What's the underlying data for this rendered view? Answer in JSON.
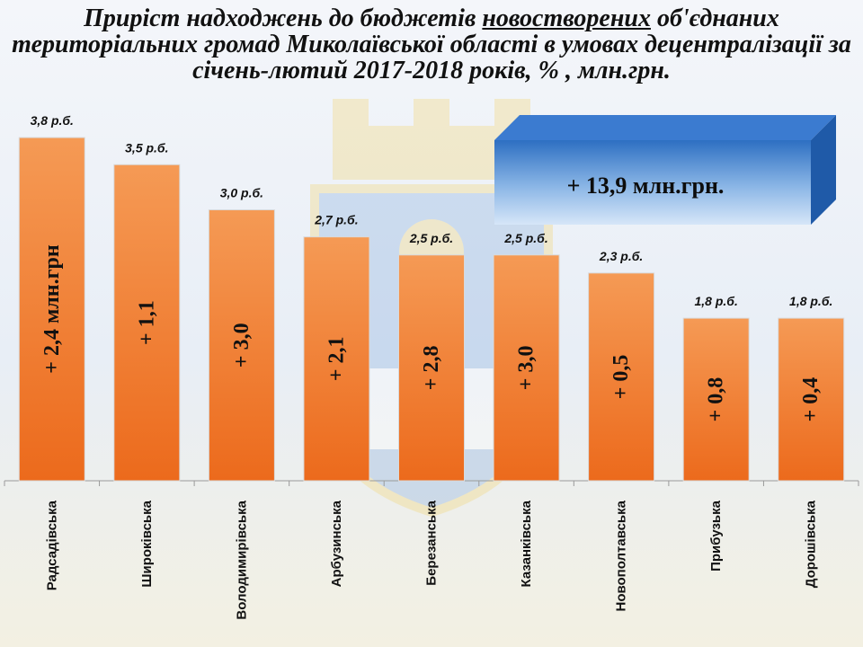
{
  "header": {
    "title_part1": "Приріст надходжень до бюджетів ",
    "title_underlined": "новостворених",
    "title_part2": " об'єднаних територіальних громад Миколаївської області в умовах децентралізації за січень-лютий 2017-2018 років, % , млн.грн."
  },
  "callout": {
    "text": "+ 13,9 млн.грн."
  },
  "chart_data": {
    "type": "bar",
    "categories": [
      "Радсадівська",
      "Широківська",
      "Володимирівська",
      "Арбузинська",
      "Березанська",
      "Казанківська",
      "Новополтавська",
      "Прибузька",
      "Дорошівська"
    ],
    "values": [
      3.8,
      3.5,
      3.0,
      2.7,
      2.5,
      2.5,
      2.3,
      1.8,
      1.8
    ],
    "top_labels": [
      "3,8 р.б.",
      "3,5 р.б.",
      "3,0 р.б.",
      "2,7 р.б.",
      "2,5 р.б.",
      "2,5 р.б.",
      "2,3 р.б.",
      "1,8 р.б.",
      "1,8 р.б."
    ],
    "bar_labels": [
      "+ 2,4 млн.грн",
      "+ 1,1",
      "+ 3,0",
      "+ 2,1",
      "+ 2,8",
      "+ 3,0",
      "+ 0,5",
      "+ 0,8",
      "+ 0,4"
    ],
    "increase_mln_uah": [
      2.4,
      1.1,
      3.0,
      2.1,
      2.8,
      3.0,
      0.5,
      0.8,
      0.4
    ],
    "total_increase_mln_uah": 13.9,
    "ylim": [
      0,
      4
    ],
    "bar_color_top": "#f59a55",
    "bar_color_bottom": "#ec6a1c",
    "grid": false,
    "legend": "none"
  }
}
